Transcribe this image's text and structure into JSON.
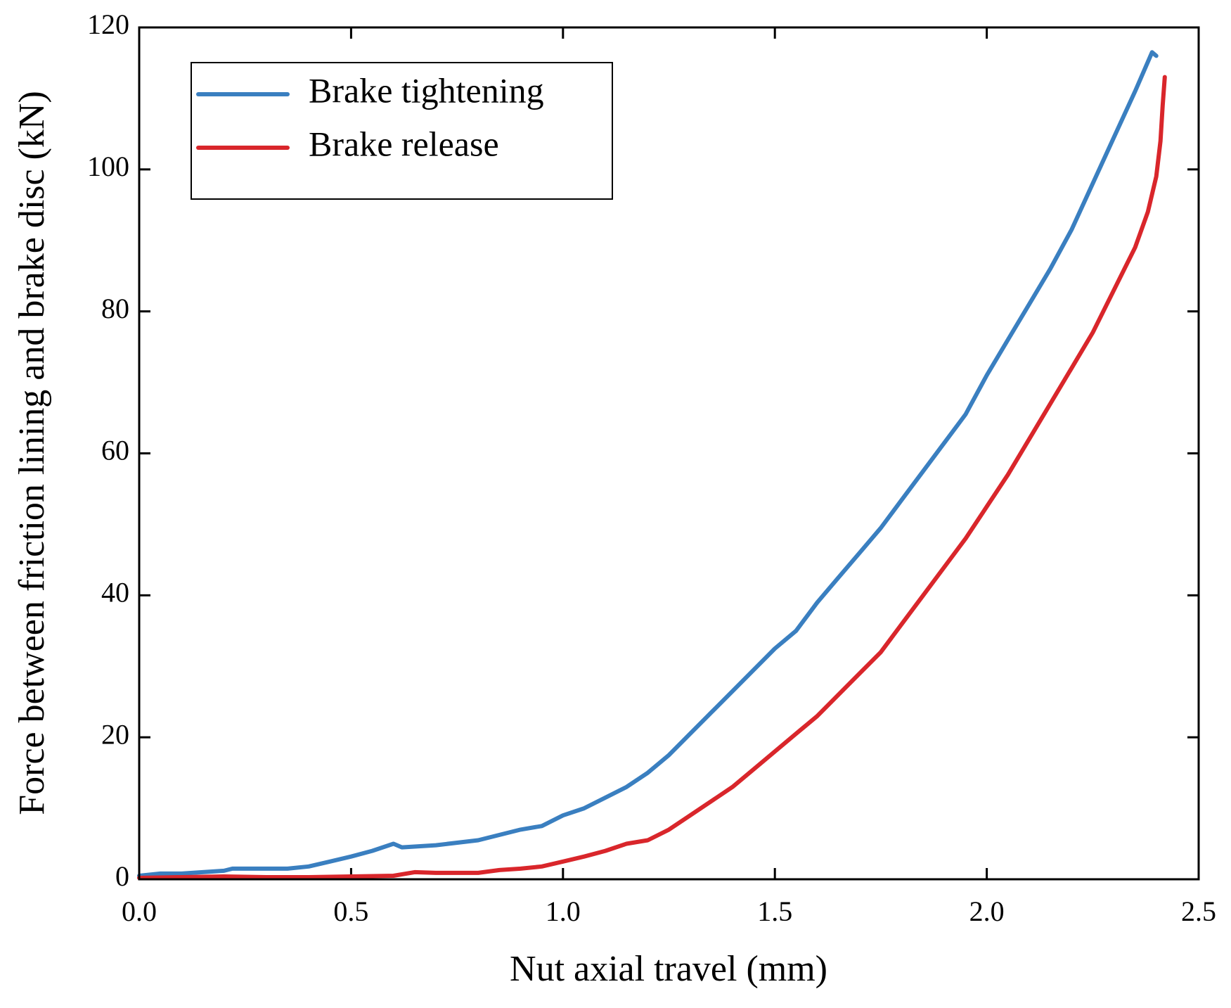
{
  "chart_data": {
    "type": "line",
    "xlabel": "Nut axial travel (mm)",
    "ylabel": "Force between friction lining and brake disc (kN)",
    "xlim": [
      0,
      2.5
    ],
    "xticks": [
      {
        "value": 0,
        "label": "0.0"
      },
      0.5,
      {
        "value": 1,
        "label": "1.0"
      },
      1.5,
      {
        "value": 2,
        "label": "2.0"
      },
      2.5
    ],
    "ylim": [
      0,
      120
    ],
    "yticks": [
      0,
      20,
      40,
      60,
      80,
      100,
      120
    ],
    "grid": false,
    "legend": "upper left",
    "series": [
      {
        "name": "Brake tightening",
        "color": "#3a7fc0",
        "x": [
          0,
          0.05,
          0.1,
          0.15,
          0.2,
          0.22,
          0.3,
          0.35,
          0.4,
          0.45,
          0.5,
          0.55,
          0.6,
          0.62,
          0.7,
          0.8,
          0.9,
          0.95,
          1.0,
          1.05,
          1.1,
          1.15,
          1.2,
          1.25,
          1.3,
          1.35,
          1.4,
          1.45,
          1.5,
          1.55,
          1.6,
          1.65,
          1.7,
          1.75,
          1.8,
          1.85,
          1.9,
          1.95,
          2.0,
          2.05,
          2.1,
          2.15,
          2.2,
          2.25,
          2.3,
          2.35,
          2.39,
          2.4
        ],
        "values": [
          0.5,
          0.8,
          0.8,
          1,
          1.2,
          1.5,
          1.5,
          1.5,
          1.8,
          2.5,
          3.2,
          4,
          5,
          4.5,
          4.8,
          5.5,
          7,
          7.5,
          9,
          10,
          11.5,
          13,
          15,
          17.5,
          20.5,
          23.5,
          26.5,
          29.5,
          32.5,
          35,
          39,
          42.5,
          46,
          49.5,
          53.5,
          57.5,
          61.5,
          65.5,
          71,
          76,
          81,
          86,
          91.5,
          98,
          104.5,
          111,
          116.5,
          116
        ]
      },
      {
        "name": "Brake release",
        "color": "#d9262b",
        "x": [
          0,
          0.1,
          0.2,
          0.3,
          0.4,
          0.5,
          0.6,
          0.65,
          0.7,
          0.8,
          0.85,
          0.9,
          0.95,
          1.0,
          1.05,
          1.1,
          1.15,
          1.2,
          1.25,
          1.3,
          1.35,
          1.4,
          1.45,
          1.5,
          1.55,
          1.6,
          1.65,
          1.7,
          1.75,
          1.8,
          1.85,
          1.9,
          1.95,
          2.0,
          2.05,
          2.1,
          2.15,
          2.2,
          2.25,
          2.3,
          2.35,
          2.38,
          2.4,
          2.41,
          2.415,
          2.42
        ],
        "values": [
          0.2,
          0.3,
          0.4,
          0.3,
          0.3,
          0.4,
          0.5,
          1,
          0.9,
          0.9,
          1.3,
          1.5,
          1.8,
          2.5,
          3.2,
          4,
          5,
          5.5,
          7,
          9,
          11,
          13,
          15.5,
          18,
          20.5,
          23,
          26,
          29,
          32,
          36,
          40,
          44,
          48,
          52.5,
          57,
          62,
          67,
          72,
          77,
          83,
          89,
          94,
          99,
          104,
          109,
          113
        ]
      }
    ]
  }
}
